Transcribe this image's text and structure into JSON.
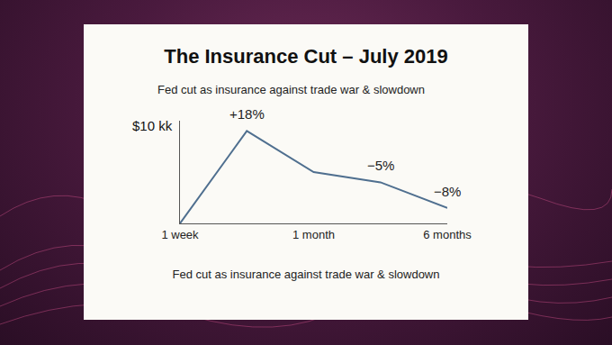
{
  "chart_data": {
    "type": "line",
    "title": "The Insurance Cut – July 2019",
    "subtitle": "Fed cut as insurance against trade war & slowdown",
    "footer": "Fed cut as insurance against trade war & slowdown",
    "y_label": "$10 kk",
    "categories": [
      "1 week",
      null,
      "1 month",
      null,
      "6 months"
    ],
    "values": [
      0,
      18,
      10,
      8,
      3
    ],
    "color": "#4f6f8f",
    "ylim": [
      0,
      20
    ],
    "yticks": [],
    "tick_labels": "x",
    "grid": false,
    "annotations": [
      {
        "at": 1,
        "text": "+18%"
      },
      {
        "at": 3,
        "text": "−5%"
      },
      {
        "at": 4,
        "text": "−8%"
      }
    ]
  }
}
